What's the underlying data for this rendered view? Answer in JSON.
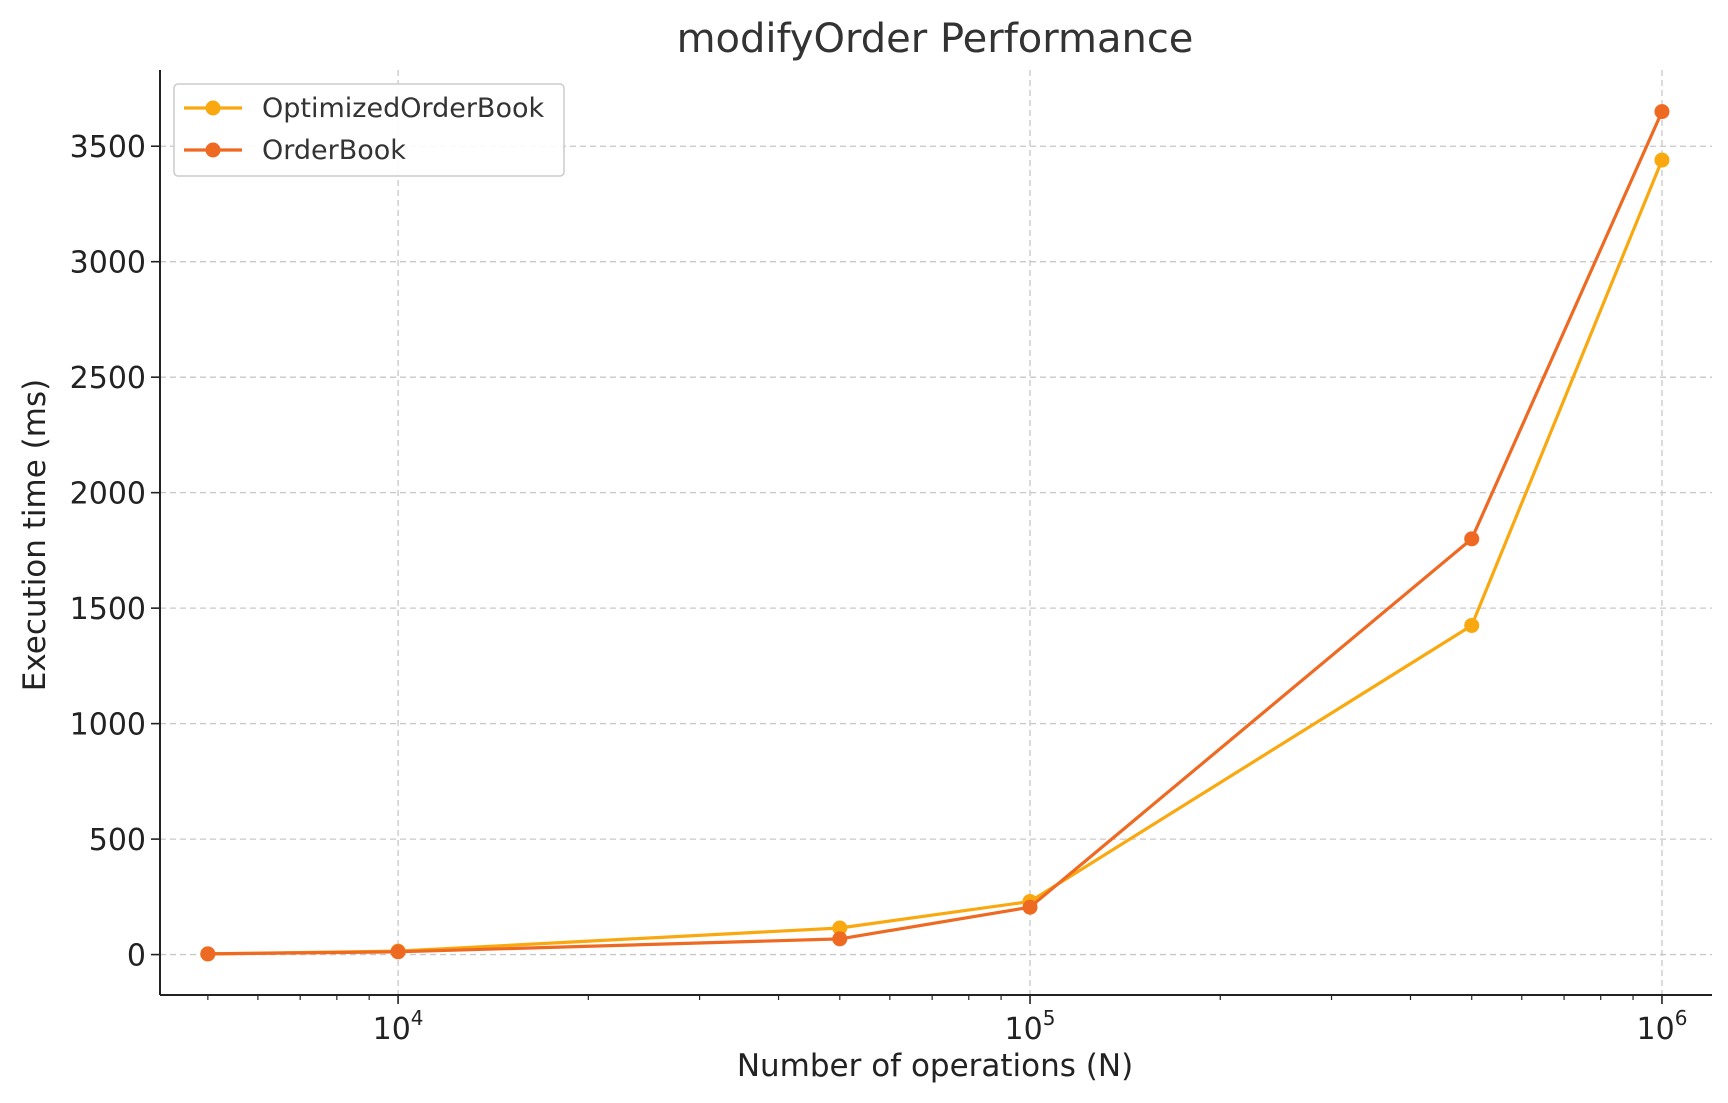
{
  "chart_data": {
    "type": "line",
    "title": "modifyOrder Performance",
    "xlabel": "Number of operations (N)",
    "ylabel": "Execution time (ms)",
    "x_scale": "log",
    "xlim": [
      4200,
      1200000
    ],
    "ylim": [
      -175,
      3830
    ],
    "grid": true,
    "legend_position": "top-left",
    "x": [
      5000,
      10000,
      50000,
      100000,
      500000,
      1000000
    ],
    "x_ticks": [
      {
        "value": 10000,
        "base": "10",
        "exp": "4"
      },
      {
        "value": 100000,
        "base": "10",
        "exp": "5"
      },
      {
        "value": 1000000,
        "base": "10",
        "exp": "6"
      }
    ],
    "y_ticks": [
      0,
      500,
      1000,
      1500,
      2000,
      2500,
      3000,
      3500
    ],
    "y_tick_labels": [
      "0",
      "500",
      "1000",
      "1500",
      "2000",
      "2500",
      "3000",
      "3500"
    ],
    "series": [
      {
        "name": "OptimizedOrderBook",
        "color": "#F9A90F",
        "values": [
          3,
          15,
          115,
          230,
          1425,
          3440
        ]
      },
      {
        "name": "OrderBook",
        "color": "#EE6A23",
        "values": [
          3,
          12,
          68,
          205,
          1800,
          3650
        ]
      }
    ]
  }
}
